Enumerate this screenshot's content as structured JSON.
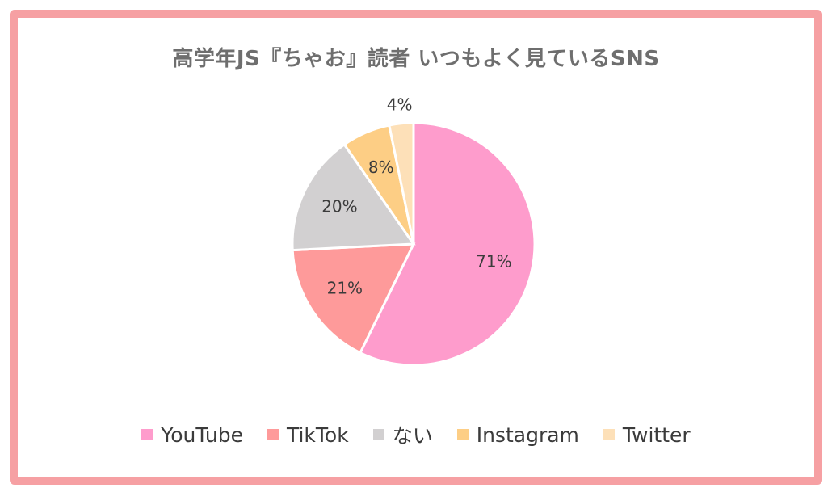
{
  "chart_data": {
    "type": "pie",
    "title": "高学年JS『ちゃお』読者 いつもよく見ているSNS",
    "legend_position": "bottom",
    "slices": [
      {
        "name": "YouTube",
        "value": 71,
        "label": "71%",
        "color": "#fe9ccc"
      },
      {
        "name": "TikTok",
        "value": 21,
        "label": "21%",
        "color": "#fe9a9a"
      },
      {
        "name": "ない",
        "value": 20,
        "label": "20%",
        "color": "#d2d0d1"
      },
      {
        "name": "Instagram",
        "value": 8,
        "label": "8%",
        "color": "#fdce85"
      },
      {
        "name": "Twitter",
        "value": 4,
        "label": "4%",
        "color": "#fde0b8"
      }
    ]
  }
}
